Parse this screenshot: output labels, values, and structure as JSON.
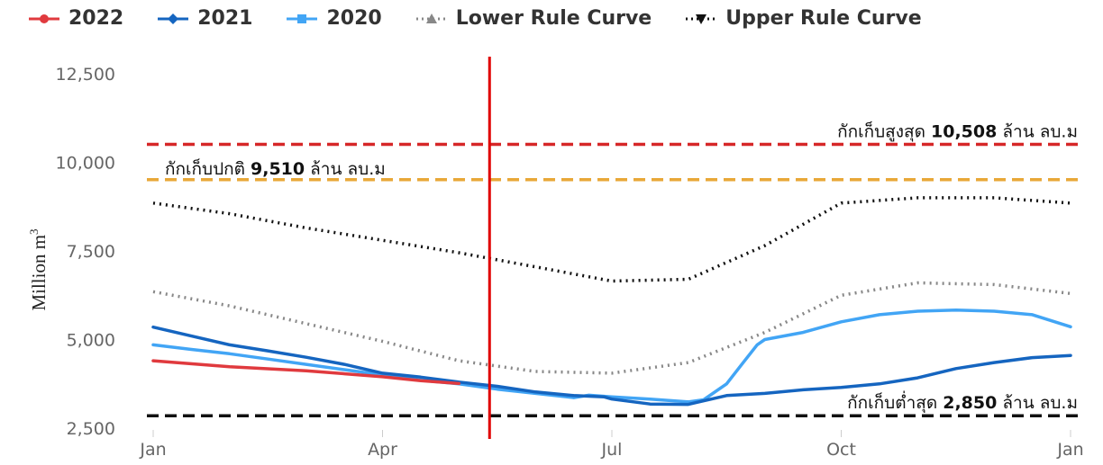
{
  "chart_data": {
    "type": "line",
    "ylabel": "Million m",
    "ylabel_sup": "3",
    "ylim": [
      2500,
      12500
    ],
    "yticks": [
      2500,
      5000,
      7500,
      10000,
      12500
    ],
    "ytick_labels": [
      "2,500",
      "5,000",
      "7,500",
      "10,000",
      "12,500"
    ],
    "xlim": [
      0,
      12
    ],
    "xticks": [
      {
        "month": 0,
        "label": "Jan"
      },
      {
        "month": 3,
        "label": "Apr"
      },
      {
        "month": 6,
        "label": "Jul"
      },
      {
        "month": 9,
        "label": "Oct"
      },
      {
        "month": 12,
        "label": "Jan"
      }
    ],
    "legend_position": "top",
    "series": [
      {
        "name": "2022",
        "color": "#e03a3e",
        "marker": "circle",
        "style": "solid",
        "x": [
          0,
          1,
          2,
          3,
          3.5,
          4
        ],
        "y": [
          4400,
          4230,
          4120,
          3950,
          3840,
          3760
        ]
      },
      {
        "name": "2021",
        "color": "#1565c0",
        "marker": "diamond",
        "style": "solid",
        "x": [
          0,
          0.5,
          1,
          1.5,
          2,
          2.5,
          3,
          3.5,
          4,
          4.5,
          5,
          5.5,
          5.9,
          6,
          6.5,
          7,
          7.5,
          8,
          8.5,
          9,
          9.5,
          10,
          10.5,
          11,
          11.5,
          12
        ],
        "y": [
          5350,
          5100,
          4850,
          4680,
          4500,
          4300,
          4050,
          3940,
          3800,
          3680,
          3520,
          3420,
          3380,
          3320,
          3180,
          3170,
          3420,
          3480,
          3580,
          3650,
          3750,
          3920,
          4180,
          4350,
          4490,
          4550
        ]
      },
      {
        "name": "2020",
        "color": "#42a5f5",
        "marker": "square",
        "style": "solid",
        "x": [
          0,
          0.5,
          1,
          1.5,
          2,
          2.5,
          3,
          3.5,
          4,
          4.5,
          5,
          5.5,
          5.7,
          6,
          6.5,
          7,
          7.2,
          7.5,
          7.7,
          7.9,
          8,
          8.5,
          9,
          9.5,
          10,
          10.5,
          11,
          11.5,
          12
        ],
        "y": [
          4850,
          4720,
          4600,
          4450,
          4300,
          4150,
          4000,
          3850,
          3750,
          3600,
          3480,
          3360,
          3430,
          3380,
          3320,
          3240,
          3300,
          3750,
          4300,
          4850,
          5000,
          5200,
          5500,
          5700,
          5800,
          5830,
          5800,
          5700,
          5360
        ]
      },
      {
        "name": "Lower Rule Curve",
        "color": "#888888",
        "marker": "triangle-up",
        "style": "dotted",
        "x": [
          0,
          1,
          2,
          3,
          4,
          5,
          6,
          7,
          8,
          9,
          10,
          11,
          12
        ],
        "y": [
          6350,
          5950,
          5450,
          4950,
          4400,
          4100,
          4050,
          4350,
          5200,
          6250,
          6600,
          6550,
          6300
        ]
      },
      {
        "name": "Upper Rule Curve",
        "color": "#111111",
        "marker": "triangle-down",
        "style": "dotted",
        "x": [
          0,
          1,
          2,
          3,
          4,
          5,
          6,
          7,
          8,
          9,
          10,
          11,
          12
        ],
        "y": [
          8850,
          8550,
          8150,
          7800,
          7450,
          7050,
          6650,
          6700,
          7650,
          8850,
          9000,
          9000,
          8850
        ]
      }
    ],
    "reference_lines": [
      {
        "value": 10508,
        "color": "#d62728",
        "style": "dashed",
        "label_prefix": "กักเก็บสูงสุด ",
        "label_value": "10,508",
        "label_suffix": " ล้าน ลบ.ม"
      },
      {
        "value": 9510,
        "color": "#e8a838",
        "style": "dashed",
        "label_prefix": "กักเก็บปกติ ",
        "label_value": "9,510",
        "label_suffix": " ล้าน ลบ.ม"
      },
      {
        "value": 2850,
        "color": "#111111",
        "style": "dashed",
        "label_prefix": "กักเก็บต่ำสุด ",
        "label_value": "2,850",
        "label_suffix": " ล้าน ลบ.ม"
      }
    ],
    "current_date_marker": {
      "month": 4.4,
      "color": "#e00000"
    }
  }
}
